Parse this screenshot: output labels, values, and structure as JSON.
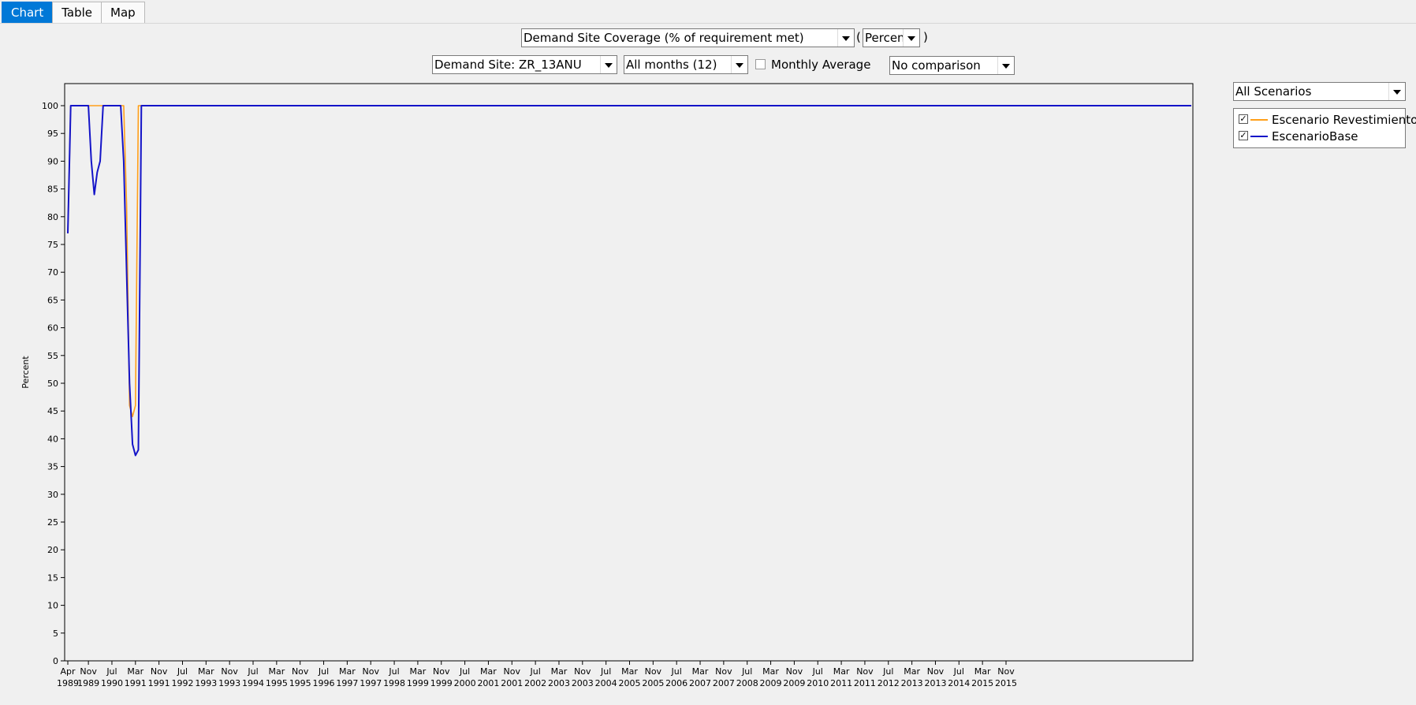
{
  "tabs": [
    {
      "label": "Chart",
      "active": true
    },
    {
      "label": "Table",
      "active": false
    },
    {
      "label": "Map",
      "active": false
    }
  ],
  "toolbar": {
    "variable": "Demand Site Coverage (% of requirement met)",
    "unit": "Percent",
    "demand_site": "Demand Site: ZR_13ANU",
    "months": "All months (12)",
    "monthly_average_label": "Monthly Average",
    "monthly_average_checked": false,
    "comparison": "No comparison",
    "scenario_filter": "All Scenarios"
  },
  "legend": [
    {
      "label": "Escenario Revestimiento",
      "color": "#ff9f1a",
      "checked": true
    },
    {
      "label": "EscenarioBase",
      "color": "#1414c8",
      "checked": true
    }
  ],
  "chart_data": {
    "type": "line",
    "ylabel": "Percent",
    "ylim": [
      0,
      100
    ],
    "yticks": [
      0,
      5,
      10,
      15,
      20,
      25,
      30,
      35,
      40,
      45,
      50,
      55,
      60,
      65,
      70,
      75,
      80,
      85,
      90,
      95,
      100
    ],
    "x_start": "Apr 1989",
    "x_step": "month",
    "xticks": [
      {
        "m": "Apr",
        "y": "1989"
      },
      {
        "m": "Nov",
        "y": "1989"
      },
      {
        "m": "Jul",
        "y": "1990"
      },
      {
        "m": "Mar",
        "y": "1991"
      },
      {
        "m": "Nov",
        "y": "1991"
      },
      {
        "m": "Jul",
        "y": "1992"
      },
      {
        "m": "Mar",
        "y": "1993"
      },
      {
        "m": "Nov",
        "y": "1993"
      },
      {
        "m": "Jul",
        "y": "1994"
      },
      {
        "m": "Mar",
        "y": "1995"
      },
      {
        "m": "Nov",
        "y": "1995"
      },
      {
        "m": "Jul",
        "y": "1996"
      },
      {
        "m": "Mar",
        "y": "1997"
      },
      {
        "m": "Nov",
        "y": "1997"
      },
      {
        "m": "Jul",
        "y": "1998"
      },
      {
        "m": "Mar",
        "y": "1999"
      },
      {
        "m": "Nov",
        "y": "1999"
      },
      {
        "m": "Jul",
        "y": "2000"
      },
      {
        "m": "Mar",
        "y": "2001"
      },
      {
        "m": "Nov",
        "y": "2001"
      },
      {
        "m": "Jul",
        "y": "2002"
      },
      {
        "m": "Mar",
        "y": "2003"
      },
      {
        "m": "Nov",
        "y": "2003"
      },
      {
        "m": "Jul",
        "y": "2004"
      },
      {
        "m": "Mar",
        "y": "2005"
      },
      {
        "m": "Nov",
        "y": "2005"
      },
      {
        "m": "Jul",
        "y": "2006"
      },
      {
        "m": "Mar",
        "y": "2007"
      },
      {
        "m": "Nov",
        "y": "2007"
      },
      {
        "m": "Jul",
        "y": "2008"
      },
      {
        "m": "Mar",
        "y": "2009"
      },
      {
        "m": "Nov",
        "y": "2009"
      },
      {
        "m": "Jul",
        "y": "2010"
      },
      {
        "m": "Mar",
        "y": "2011"
      },
      {
        "m": "Nov",
        "y": "2011"
      },
      {
        "m": "Jul",
        "y": "2012"
      },
      {
        "m": "Mar",
        "y": "2013"
      },
      {
        "m": "Nov",
        "y": "2013"
      },
      {
        "m": "Jul",
        "y": "2014"
      },
      {
        "m": "Mar",
        "y": "2015"
      },
      {
        "m": "Nov",
        "y": "2015"
      }
    ],
    "series": [
      {
        "name": "Escenario Revestimiento",
        "color": "#ff9f1a",
        "values": [
          77,
          100,
          100,
          100,
          100,
          100,
          100,
          100,
          100,
          100,
          100,
          100,
          100,
          100,
          100,
          100,
          100,
          100,
          100,
          100,
          82,
          46,
          44,
          46,
          100,
          100,
          100,
          100,
          100,
          100,
          100,
          100,
          100,
          100,
          100,
          100,
          100,
          100,
          100,
          100,
          100,
          100,
          100,
          100,
          100,
          100,
          100,
          100,
          100,
          100,
          100,
          100,
          100,
          100,
          100,
          100,
          100,
          100,
          100,
          100,
          100,
          100,
          100,
          100,
          100,
          100,
          100,
          100,
          100,
          100,
          100,
          100,
          100,
          100,
          100,
          100,
          100,
          100,
          100,
          100,
          100,
          100,
          100,
          100,
          100,
          100,
          100,
          100,
          100,
          100,
          100,
          100,
          100,
          100,
          100,
          100,
          100,
          100,
          100,
          100,
          100,
          100,
          100,
          100,
          100,
          100,
          100,
          100,
          100,
          100,
          100,
          100,
          100,
          100,
          100,
          100,
          100,
          100,
          100,
          100,
          100,
          100,
          100,
          100,
          100,
          100,
          100,
          100,
          100,
          100,
          100,
          100,
          100,
          100,
          100,
          100,
          100,
          100,
          100,
          100,
          100,
          100,
          100,
          100,
          100,
          100,
          100,
          100,
          100,
          100,
          100,
          100,
          100,
          100,
          100,
          100,
          100,
          100,
          100,
          100,
          100,
          100,
          100,
          100,
          100,
          100,
          100,
          100,
          100,
          100,
          100,
          100,
          100,
          100,
          100,
          100,
          100,
          100,
          100,
          100,
          100,
          100,
          100,
          100,
          100,
          100,
          100,
          100,
          100,
          100,
          100,
          100,
          100,
          100,
          100,
          100,
          100,
          100,
          100,
          100,
          100,
          100,
          100,
          100,
          100,
          100,
          100,
          100,
          100,
          100,
          100,
          100,
          100,
          100,
          100,
          100,
          100,
          100,
          100,
          100,
          100,
          100,
          100,
          100,
          100,
          100,
          100,
          100,
          100,
          100,
          100,
          100,
          100,
          100,
          100,
          100,
          100,
          100,
          100,
          100,
          100,
          100,
          100,
          100,
          100,
          100,
          100,
          100,
          100,
          100,
          100,
          100,
          100,
          100,
          100,
          100,
          100,
          100,
          100,
          100,
          100,
          100,
          100,
          100,
          100,
          100,
          100,
          100,
          100,
          100,
          100,
          100,
          100,
          100,
          100,
          100,
          100,
          100,
          100,
          100,
          100,
          100,
          100,
          100,
          100,
          100,
          100,
          100,
          100,
          100,
          100,
          100,
          100,
          100,
          100,
          100,
          100,
          100,
          100,
          100,
          100,
          100,
          100,
          100,
          100,
          100,
          100,
          100,
          100,
          100,
          100,
          100,
          100,
          100,
          100,
          100,
          100,
          100,
          100,
          100,
          100,
          100,
          100,
          100,
          100,
          100,
          100,
          100,
          100,
          100,
          100,
          100,
          100,
          100,
          100,
          100,
          100,
          100,
          100,
          100,
          100,
          100,
          100,
          100,
          100,
          100,
          100,
          100,
          100,
          100,
          100,
          100,
          100,
          100,
          100,
          100,
          100,
          100,
          100,
          100,
          100,
          100,
          100,
          100,
          100,
          100,
          100,
          100,
          100,
          100,
          100,
          100,
          100,
          100,
          100,
          100,
          100,
          100
        ]
      },
      {
        "name": "EscenarioBase",
        "color": "#1414c8",
        "values": [
          77,
          100,
          100,
          100,
          100,
          100,
          100,
          100,
          90,
          84,
          88,
          90,
          100,
          100,
          100,
          100,
          100,
          100,
          100,
          90,
          70,
          50,
          39,
          37,
          38,
          100,
          100,
          100,
          100,
          100,
          100,
          100,
          100,
          100,
          100,
          100,
          100,
          100,
          100,
          100,
          100,
          100,
          100,
          100,
          100,
          100,
          100,
          100,
          100,
          100,
          100,
          100,
          100,
          100,
          100,
          100,
          100,
          100,
          100,
          100,
          100,
          100,
          100,
          100,
          100,
          100,
          100,
          100,
          100,
          100,
          100,
          100,
          100,
          100,
          100,
          100,
          100,
          100,
          100,
          100,
          100,
          100,
          100,
          100,
          100,
          100,
          100,
          100,
          100,
          100,
          100,
          100,
          100,
          100,
          100,
          100,
          100,
          100,
          100,
          100,
          100,
          100,
          100,
          100,
          100,
          100,
          100,
          100,
          100,
          100,
          100,
          100,
          100,
          100,
          100,
          100,
          100,
          100,
          100,
          100,
          100,
          100,
          100,
          100,
          100,
          100,
          100,
          100,
          100,
          100,
          100,
          100,
          100,
          100,
          100,
          100,
          100,
          100,
          100,
          100,
          100,
          100,
          100,
          100,
          100,
          100,
          100,
          100,
          100,
          100,
          100,
          100,
          100,
          100,
          100,
          100,
          100,
          100,
          100,
          100,
          100,
          100,
          100,
          100,
          100,
          100,
          100,
          100,
          100,
          100,
          100,
          100,
          100,
          100,
          100,
          100,
          100,
          100,
          100,
          100,
          100,
          100,
          100,
          100,
          100,
          100,
          100,
          100,
          100,
          100,
          100,
          100,
          100,
          100,
          100,
          100,
          100,
          100,
          100,
          100,
          100,
          100,
          100,
          100,
          100,
          100,
          100,
          100,
          100,
          100,
          100,
          100,
          100,
          100,
          100,
          100,
          100,
          100,
          100,
          100,
          100,
          100,
          100,
          100,
          100,
          100,
          100,
          100,
          100,
          100,
          100,
          100,
          100,
          100,
          100,
          100,
          100,
          100,
          100,
          100,
          100,
          100,
          100,
          100,
          100,
          100,
          100,
          100,
          100,
          100,
          100,
          100,
          100,
          100,
          100,
          100,
          100,
          100,
          100,
          100,
          100,
          100,
          100,
          100,
          100,
          100,
          100,
          100,
          100,
          100,
          100,
          100,
          100,
          100,
          100,
          100,
          100,
          100,
          100,
          100,
          100,
          100,
          100,
          100,
          100,
          100,
          100,
          100,
          100,
          100,
          100,
          100,
          100,
          100,
          100,
          100,
          100,
          100,
          100,
          100,
          100,
          100,
          100,
          100,
          100,
          100,
          100,
          100,
          100,
          100,
          100,
          100,
          100,
          100,
          100,
          100,
          100,
          100,
          100,
          100,
          100,
          100,
          100,
          100,
          100,
          100,
          100,
          100,
          100,
          100,
          100,
          100,
          100,
          100,
          100,
          100,
          100,
          100,
          100,
          100,
          100,
          100,
          100,
          100,
          100,
          100,
          100,
          100,
          100,
          100,
          100,
          100,
          100,
          100,
          100,
          100,
          100,
          100,
          100,
          100,
          100,
          100,
          100,
          100,
          100,
          100,
          100,
          100,
          100,
          100,
          100,
          100,
          100,
          100,
          100,
          100,
          100,
          100,
          100,
          100,
          100,
          100,
          100
        ]
      }
    ]
  }
}
